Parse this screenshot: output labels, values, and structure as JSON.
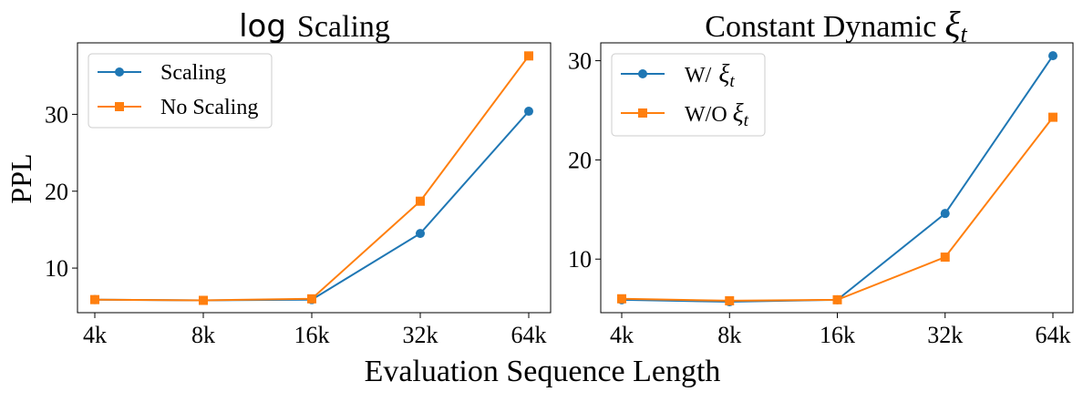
{
  "figure": {
    "ylabel": "PPL",
    "xlabel": "Evaluation Sequence Length",
    "colors": {
      "blue": "#1f77b4",
      "orange": "#ff7f0e"
    }
  },
  "chart_data": [
    {
      "type": "line",
      "title_prefix": "log",
      "title_rest": "Scaling",
      "categories": [
        "4k",
        "8k",
        "16k",
        "32k",
        "64k"
      ],
      "yticks": [
        10,
        20,
        30
      ],
      "ylim": [
        4.2,
        39.3
      ],
      "legend_position": "top-left",
      "series": [
        {
          "name": "Scaling",
          "marker": "circle",
          "color": "#1f77b4",
          "values": [
            5.9,
            5.8,
            5.9,
            14.5,
            30.4
          ]
        },
        {
          "name": "No Scaling",
          "marker": "square",
          "color": "#ff7f0e",
          "values": [
            5.9,
            5.8,
            6.0,
            18.7,
            37.6
          ]
        }
      ]
    },
    {
      "type": "line",
      "title_prefix": "Constant Dynamic",
      "title_symbol": "ξ",
      "title_sub": "t",
      "categories": [
        "4k",
        "8k",
        "16k",
        "32k",
        "64k"
      ],
      "yticks": [
        10,
        20,
        30
      ],
      "ylim": [
        4.6,
        31.8
      ],
      "legend_position": "top-left",
      "series": [
        {
          "name_prefix": "W/",
          "name_symbol": "ξ",
          "name_sub": "t",
          "marker": "circle",
          "color": "#1f77b4",
          "values": [
            5.9,
            5.7,
            5.9,
            14.6,
            30.5
          ]
        },
        {
          "name_prefix": "W/O",
          "name_symbol": "ξ",
          "name_sub": "t",
          "marker": "square",
          "color": "#ff7f0e",
          "values": [
            6.0,
            5.8,
            5.9,
            10.2,
            24.3
          ]
        }
      ]
    }
  ]
}
